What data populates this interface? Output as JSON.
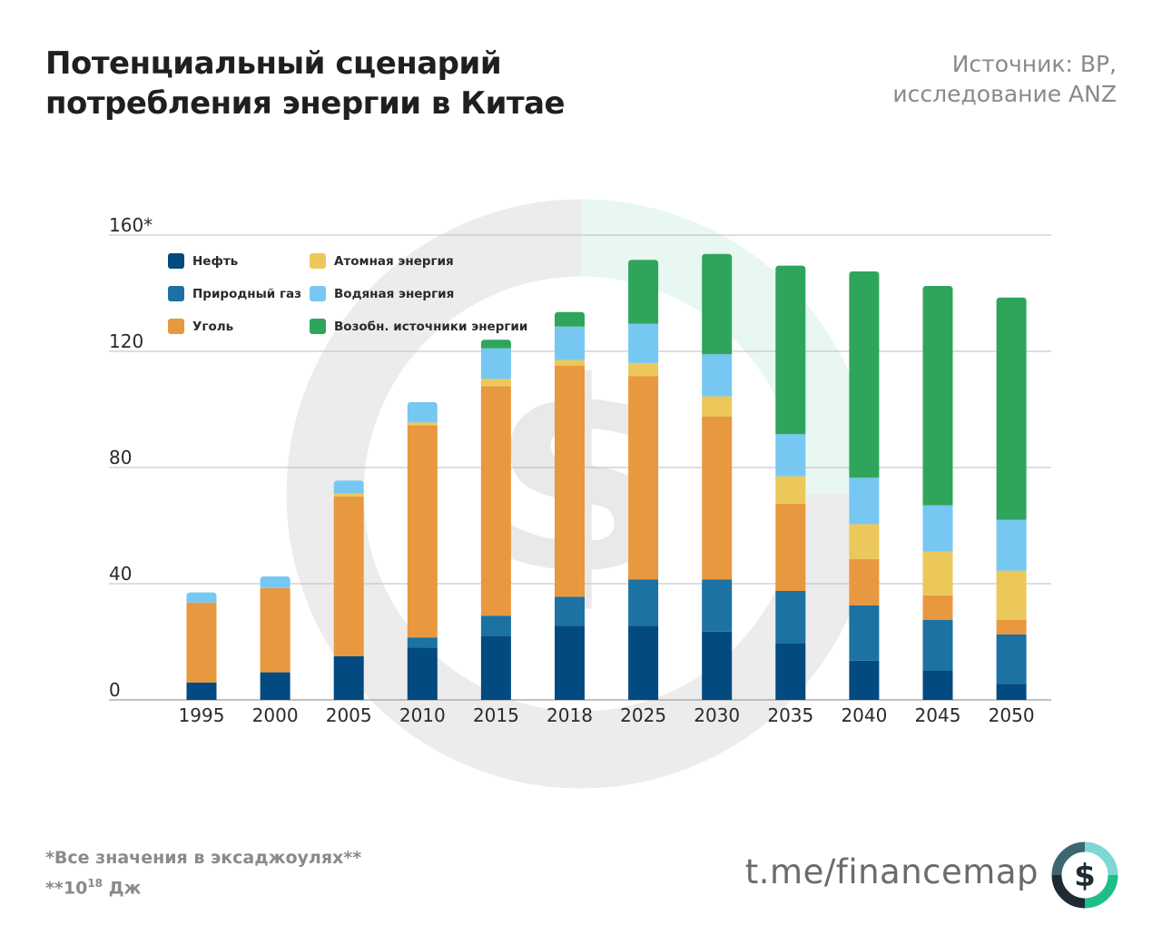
{
  "header": {
    "title_line1": "Потенциальный сценарий",
    "title_line2": "потребления энергии в Китае",
    "source_line1": "Источник:  BP,",
    "source_line2": "исследование ANZ"
  },
  "footer": {
    "note_line1": "*Все значения в эксаджоулях**",
    "note_line2_prefix": "**10",
    "note_line2_exp": "18",
    "note_line2_suffix": " Дж",
    "link": "t.me/financemap",
    "logo_glyph": "$"
  },
  "colors": {
    "oil": "#024a80",
    "gas": "#1b72a3",
    "coal": "#e8983e",
    "nuclear": "#ecc85a",
    "hydro": "#76c8f3",
    "renewables": "#2ea55a",
    "grid": "#bdbdbd",
    "axis_text": "#2a2a2a"
  },
  "chart_data": {
    "type": "bar",
    "stacked": true,
    "title": "Потенциальный сценарий потребления энергии в Китае",
    "ylim": [
      0,
      160
    ],
    "yticks": [
      "0",
      "40",
      "80",
      "120",
      "160*"
    ],
    "ytick_values": [
      0,
      40,
      80,
      120,
      160
    ],
    "grid": true,
    "legend_position": "top-left",
    "categories": [
      "1995",
      "2000",
      "2005",
      "2010",
      "2015",
      "2018",
      "2025",
      "2030",
      "2035",
      "2040",
      "2045",
      "2050"
    ],
    "series": [
      {
        "name": "Нефть",
        "color_key": "oil",
        "values": [
          6,
          9.5,
          15,
          18,
          22,
          25.5,
          25.5,
          23.5,
          19.5,
          13.5,
          10,
          5.5
        ]
      },
      {
        "name": "Природный газ",
        "color_key": "gas",
        "values": [
          0,
          0,
          0,
          3.5,
          7,
          10,
          16,
          18,
          18,
          19,
          17.5,
          17
        ]
      },
      {
        "name": "Уголь",
        "color_key": "coal",
        "values": [
          27.5,
          29,
          55,
          73,
          79,
          79.5,
          70,
          56,
          30,
          16,
          8.5,
          5
        ]
      },
      {
        "name": "Атомная энергия",
        "color_key": "nuclear",
        "values": [
          0,
          0,
          1,
          1,
          2.5,
          2,
          4.5,
          7,
          9.5,
          12,
          15,
          17
        ]
      },
      {
        "name": "Водяная энергия",
        "color_key": "hydro",
        "values": [
          3.5,
          4,
          4.5,
          7,
          10.5,
          11.5,
          13.5,
          14.5,
          14.5,
          16,
          16,
          17.5
        ]
      },
      {
        "name": "Возобн. источники энергии",
        "color_key": "renewables",
        "values": [
          0,
          0,
          0,
          0,
          3,
          5,
          22,
          34.5,
          58,
          71,
          75.5,
          76.5
        ]
      }
    ]
  }
}
